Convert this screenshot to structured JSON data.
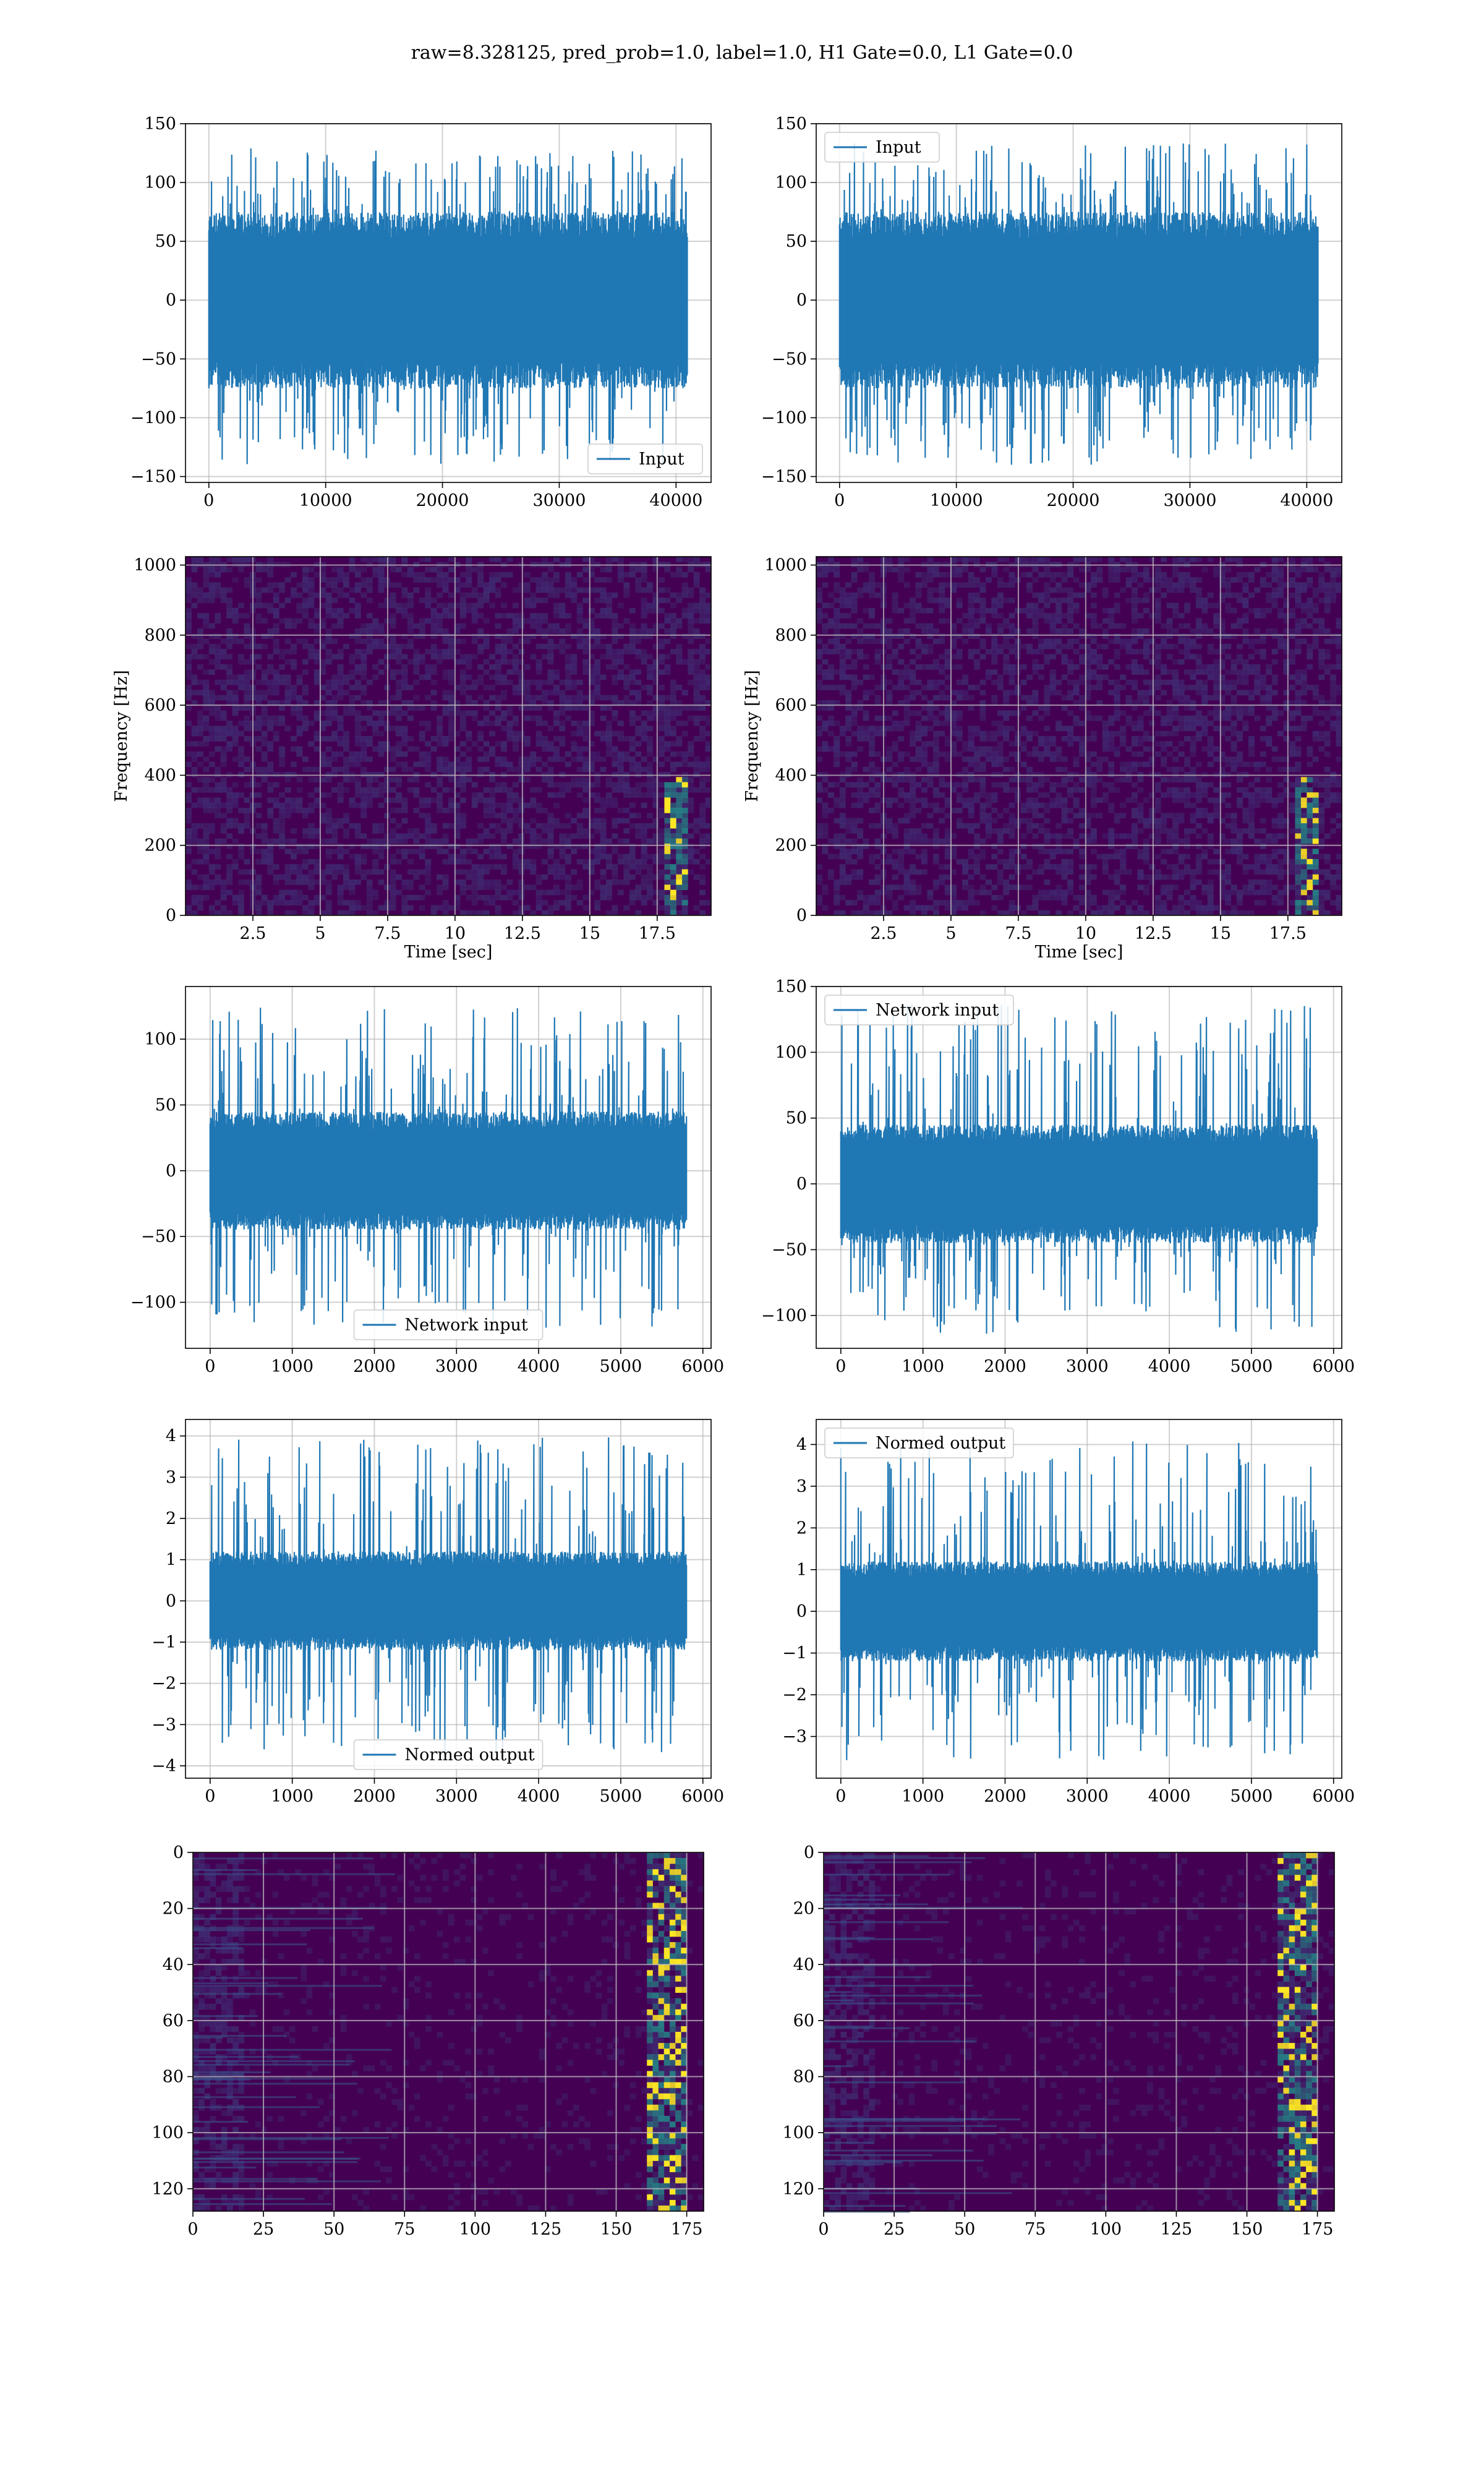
{
  "title": "raw=8.328125, pred_prob=1.0, label=1.0, H1 Gate=0.0, L1 Gate=0.0",
  "colors": {
    "line": "#1f77b4",
    "heat_low": "#440154",
    "heat_mid": "#21918c",
    "heat_high": "#fde725"
  },
  "chart_data": [
    {
      "id": "p1",
      "type": "line",
      "legend": "Input",
      "legend_loc": "lower-right",
      "xlim": [
        -2000,
        43000
      ],
      "ylim": [
        -155,
        150
      ],
      "xticks": [
        0,
        10000,
        20000,
        30000,
        40000
      ],
      "yticks": [
        -150,
        -100,
        -50,
        0,
        50,
        100,
        150
      ],
      "series": [
        {
          "x_range": [
            0,
            40960
          ],
          "band": [
            -75,
            75
          ],
          "peak": [
            -140,
            130
          ]
        }
      ]
    },
    {
      "id": "p2",
      "type": "line",
      "legend": "Input",
      "legend_loc": "upper-left",
      "xlim": [
        -2000,
        43000
      ],
      "ylim": [
        -155,
        150
      ],
      "xticks": [
        0,
        10000,
        20000,
        30000,
        40000
      ],
      "yticks": [
        -150,
        -100,
        -50,
        0,
        50,
        100,
        150
      ],
      "series": [
        {
          "x_range": [
            0,
            40960
          ],
          "band": [
            -75,
            75
          ],
          "peak": [
            -140,
            135
          ]
        }
      ]
    },
    {
      "id": "p3",
      "type": "heatmap",
      "xlabel": "Time [sec]",
      "ylabel": "Frequency [Hz]",
      "xlim": [
        0,
        19.5
      ],
      "ylim": [
        0,
        1024
      ],
      "xticks": [
        2.5,
        5.0,
        7.5,
        10.0,
        12.5,
        15.0,
        17.5
      ],
      "yticks": [
        0,
        200,
        400,
        600,
        800,
        1000
      ],
      "colormap": "viridis"
    },
    {
      "id": "p4",
      "type": "heatmap",
      "xlabel": "Time [sec]",
      "ylabel": "Frequency [Hz]",
      "xlim": [
        0,
        19.5
      ],
      "ylim": [
        0,
        1024
      ],
      "xticks": [
        2.5,
        5.0,
        7.5,
        10.0,
        12.5,
        15.0,
        17.5
      ],
      "yticks": [
        0,
        200,
        400,
        600,
        800,
        1000
      ],
      "colormap": "viridis"
    },
    {
      "id": "p5",
      "type": "line",
      "legend": "Network input",
      "legend_loc": "lower-center",
      "xlim": [
        -300,
        6100
      ],
      "ylim": [
        -135,
        140
      ],
      "xticks": [
        0,
        1000,
        2000,
        3000,
        4000,
        5000,
        6000
      ],
      "yticks": [
        -100,
        -50,
        0,
        50,
        100
      ],
      "series": [
        {
          "x_range": [
            0,
            5800
          ],
          "band": [
            -45,
            45
          ],
          "peak": [
            -120,
            125
          ]
        }
      ]
    },
    {
      "id": "p6",
      "type": "line",
      "legend": "Network input",
      "legend_loc": "upper-left",
      "xlim": [
        -300,
        6100
      ],
      "ylim": [
        -125,
        150
      ],
      "xticks": [
        0,
        1000,
        2000,
        3000,
        4000,
        5000,
        6000
      ],
      "yticks": [
        -100,
        -50,
        0,
        50,
        100,
        150
      ],
      "series": [
        {
          "x_range": [
            0,
            5800
          ],
          "band": [
            -45,
            45
          ],
          "peak": [
            -115,
            138
          ]
        }
      ]
    },
    {
      "id": "p7",
      "type": "line",
      "legend": "Normed output",
      "legend_loc": "lower-center",
      "xlim": [
        -300,
        6100
      ],
      "ylim": [
        -4.3,
        4.4
      ],
      "xticks": [
        0,
        1000,
        2000,
        3000,
        4000,
        5000,
        6000
      ],
      "yticks": [
        -4,
        -3,
        -2,
        -1,
        0,
        1,
        2,
        3,
        4
      ],
      "series": [
        {
          "x_range": [
            0,
            5800
          ],
          "band": [
            -1.2,
            1.2
          ],
          "peak": [
            -3.8,
            4.0
          ]
        }
      ]
    },
    {
      "id": "p8",
      "type": "line",
      "legend": "Normed output",
      "legend_loc": "upper-left",
      "xlim": [
        -300,
        6100
      ],
      "ylim": [
        -4.0,
        4.6
      ],
      "xticks": [
        0,
        1000,
        2000,
        3000,
        4000,
        5000,
        6000
      ],
      "yticks": [
        -3,
        -2,
        -1,
        0,
        1,
        2,
        3,
        4
      ],
      "series": [
        {
          "x_range": [
            0,
            5800
          ],
          "band": [
            -1.2,
            1.2
          ],
          "peak": [
            -3.6,
            4.1
          ]
        }
      ]
    },
    {
      "id": "p9",
      "type": "heatmap",
      "xlim": [
        0,
        181
      ],
      "ylim": [
        128,
        0
      ],
      "xticks": [
        0,
        25,
        50,
        75,
        100,
        125,
        150,
        175
      ],
      "yticks": [
        0,
        20,
        40,
        60,
        80,
        100,
        120
      ],
      "colormap": "viridis"
    },
    {
      "id": "p10",
      "type": "heatmap",
      "xlim": [
        0,
        181
      ],
      "ylim": [
        128,
        0
      ],
      "xticks": [
        0,
        25,
        50,
        75,
        100,
        125,
        150,
        175
      ],
      "yticks": [
        0,
        20,
        40,
        60,
        80,
        100,
        120
      ],
      "colormap": "viridis"
    }
  ]
}
